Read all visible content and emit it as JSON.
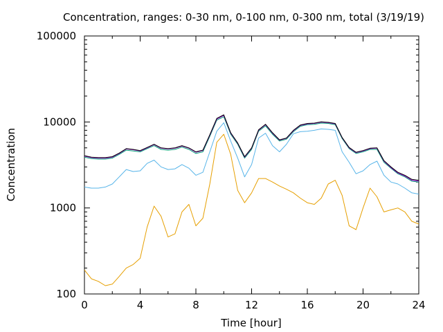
{
  "chart_data": {
    "type": "line",
    "title": "Concentration, ranges: 0-30 nm, 0-100 nm, 0-300 nm, total (3/19/19)",
    "xlabel": "Time [hour]",
    "ylabel": "Concentration",
    "xlim": [
      0,
      24
    ],
    "ylim": [
      100,
      100000
    ],
    "yscale": "log",
    "grid": false,
    "legend": "none",
    "x_ticks": [
      "0",
      "4",
      "8",
      "12",
      "16",
      "20",
      "24"
    ],
    "y_ticks": [
      "100",
      "1000",
      "10000",
      "100000"
    ],
    "series": [
      {
        "color": "#e69f00",
        "x": [
          0,
          0.5,
          1,
          1.5,
          2,
          2.5,
          3,
          3.5,
          4,
          4.5,
          5,
          5.5,
          6,
          6.5,
          7,
          7.5,
          8,
          8.5,
          9,
          9.5,
          10,
          10.5,
          11,
          11.5,
          12,
          12.5,
          13,
          13.5,
          14,
          14.5,
          15,
          15.5,
          16,
          16.5,
          17,
          17.5,
          18,
          18.5,
          19,
          19.5,
          20,
          20.5,
          21,
          21.5,
          22,
          22.5,
          23,
          23.5,
          24
        ],
        "y": [
          190,
          150,
          140,
          125,
          130,
          160,
          200,
          220,
          260,
          600,
          1050,
          800,
          460,
          500,
          900,
          1100,
          620,
          760,
          1900,
          5800,
          7200,
          4200,
          1600,
          1150,
          1500,
          2200,
          2200,
          2000,
          1800,
          1650,
          1500,
          1300,
          1150,
          1100,
          1300,
          1900,
          2100,
          1400,
          620,
          560,
          1000,
          1700,
          1350,
          900,
          950,
          1000,
          900,
          700,
          650
        ]
      },
      {
        "color": "#56b4e9",
        "x": [
          0,
          0.5,
          1,
          1.5,
          2,
          2.5,
          3,
          3.5,
          4,
          4.5,
          5,
          5.5,
          6,
          6.5,
          7,
          7.5,
          8,
          8.5,
          9,
          9.5,
          10,
          10.5,
          11,
          11.5,
          12,
          12.5,
          13,
          13.5,
          14,
          14.5,
          15,
          15.5,
          16,
          16.5,
          17,
          17.5,
          18,
          18.5,
          19,
          19.5,
          20,
          20.5,
          21,
          21.5,
          22,
          22.5,
          23,
          23.5,
          24
        ],
        "y": [
          1750,
          1700,
          1700,
          1750,
          1900,
          2300,
          2800,
          2650,
          2700,
          3300,
          3600,
          3000,
          2800,
          2850,
          3200,
          2900,
          2400,
          2600,
          4500,
          7800,
          9800,
          6000,
          3800,
          2300,
          3200,
          6500,
          7400,
          5300,
          4500,
          5500,
          7300,
          7700,
          7800,
          8000,
          8300,
          8200,
          8000,
          4500,
          3400,
          2500,
          2700,
          3200,
          3500,
          2400,
          2000,
          1900,
          1700,
          1500,
          1450
        ]
      },
      {
        "color": "#009e73",
        "x": [
          0,
          0.5,
          1,
          1.5,
          2,
          2.5,
          3,
          3.5,
          4,
          4.5,
          5,
          5.5,
          6,
          6.5,
          7,
          7.5,
          8,
          8.5,
          9,
          9.5,
          10,
          10.5,
          11,
          11.5,
          12,
          12.5,
          13,
          13.5,
          14,
          14.5,
          15,
          15.5,
          16,
          16.5,
          17,
          17.5,
          18,
          18.5,
          19,
          19.5,
          20,
          20.5,
          21,
          21.5,
          22,
          22.5,
          23,
          23.5,
          24
        ],
        "y": [
          3900,
          3750,
          3700,
          3700,
          3800,
          4200,
          4700,
          4600,
          4500,
          4900,
          5300,
          4800,
          4700,
          4800,
          5100,
          4800,
          4300,
          4500,
          6800,
          10500,
          11500,
          7200,
          5500,
          3800,
          4800,
          7800,
          9000,
          7200,
          6000,
          6300,
          7700,
          8900,
          9300,
          9400,
          9700,
          9600,
          9300,
          6400,
          4900,
          4300,
          4500,
          4800,
          4800,
          3400,
          2900,
          2500,
          2300,
          2050,
          2000
        ]
      },
      {
        "color": "#9400d3",
        "x": [
          0,
          0.5,
          1,
          1.5,
          2,
          2.5,
          3,
          3.5,
          4,
          4.5,
          5,
          5.5,
          6,
          6.5,
          7,
          7.5,
          8,
          8.5,
          9,
          9.5,
          10,
          10.5,
          11,
          11.5,
          12,
          12.5,
          13,
          13.5,
          14,
          14.5,
          15,
          15.5,
          16,
          16.5,
          17,
          17.5,
          18,
          18.5,
          19,
          19.5,
          20,
          20.5,
          21,
          21.5,
          22,
          22.5,
          23,
          23.5,
          24
        ],
        "y": [
          4000,
          3850,
          3800,
          3800,
          3900,
          4300,
          4850,
          4750,
          4600,
          5000,
          5450,
          4950,
          4850,
          4950,
          5250,
          4950,
          4450,
          4650,
          7000,
          10800,
          11900,
          7400,
          5650,
          3900,
          4950,
          8000,
          9300,
          7400,
          6150,
          6450,
          7900,
          9100,
          9500,
          9600,
          9950,
          9800,
          9500,
          6550,
          5000,
          4400,
          4600,
          4900,
          4950,
          3500,
          2950,
          2550,
          2350,
          2100,
          2050
        ]
      },
      {
        "color": "#000000",
        "x": [
          0,
          0.5,
          1,
          1.5,
          2,
          2.5,
          3,
          3.5,
          4,
          4.5,
          5,
          5.5,
          6,
          6.5,
          7,
          7.5,
          8,
          8.5,
          9,
          9.5,
          10,
          10.5,
          11,
          11.5,
          12,
          12.5,
          13,
          13.5,
          14,
          14.5,
          15,
          15.5,
          16,
          16.5,
          17,
          17.5,
          18,
          18.5,
          19,
          19.5,
          20,
          20.5,
          21,
          21.5,
          22,
          22.5,
          23,
          23.5,
          24
        ],
        "y": [
          4050,
          3900,
          3850,
          3850,
          3950,
          4350,
          4900,
          4800,
          4650,
          5050,
          5500,
          5000,
          4900,
          5000,
          5300,
          5000,
          4500,
          4700,
          7100,
          11000,
          12100,
          7500,
          5700,
          3950,
          5000,
          8100,
          9400,
          7500,
          6200,
          6500,
          8000,
          9200,
          9600,
          9700,
          10050,
          9900,
          9600,
          6600,
          5050,
          4450,
          4650,
          4950,
          5000,
          3550,
          3000,
          2600,
          2400,
          2150,
          2100
        ]
      }
    ]
  }
}
